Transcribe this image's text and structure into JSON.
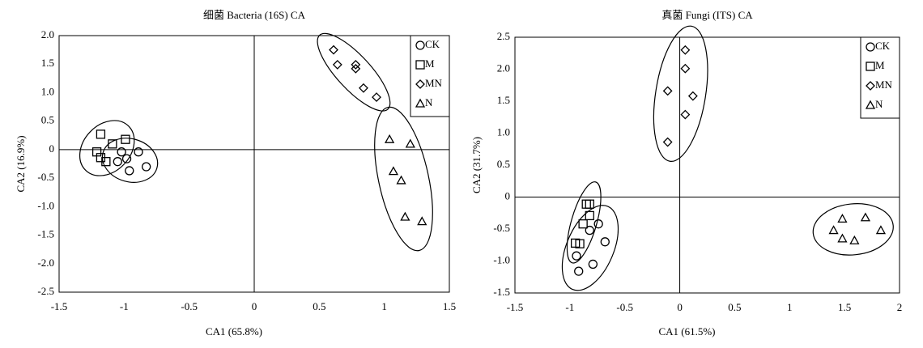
{
  "chart_data": [
    {
      "type": "scatter",
      "title": "细菌 Bacteria (16S) CA",
      "x_label": "CA1 (65.8%)",
      "y_label": "CA2 (16.9%)",
      "xlim": [
        -1.5,
        1.5
      ],
      "ylim": [
        -2.5,
        2.0
      ],
      "xticks": [
        -1.5,
        -1,
        -0.5,
        0,
        0.5,
        1,
        1.5
      ],
      "yticks": [
        {
          "value": 2.0,
          "label": "2.0"
        },
        1.5,
        {
          "value": 1.0,
          "label": "1.0"
        },
        0.5,
        0,
        -0.5,
        {
          "value": -1.0,
          "label": "-1.0"
        },
        -1.5,
        {
          "value": -2.0,
          "label": "-2.0"
        },
        -2.5
      ],
      "grid": false,
      "legend": "upper right",
      "series": [
        {
          "name": "CK",
          "marker": "circle",
          "color": "#000000",
          "x": [
            -1.02,
            -0.89,
            -0.98,
            -1.05,
            -0.83,
            -0.96
          ],
          "values": [
            -0.04,
            -0.04,
            -0.16,
            -0.21,
            -0.3,
            -0.37
          ]
        },
        {
          "name": "M",
          "marker": "square",
          "color": "#000000",
          "x": [
            -1.18,
            -0.99,
            -1.09,
            -1.21,
            -1.18,
            -1.14
          ],
          "values": [
            0.27,
            0.18,
            0.1,
            -0.04,
            -0.14,
            -0.21
          ]
        },
        {
          "name": "MN",
          "marker": "diamond",
          "color": "#000000",
          "x": [
            0.61,
            0.64,
            0.78,
            0.78,
            0.84,
            0.94
          ],
          "values": [
            1.75,
            1.49,
            1.49,
            1.42,
            1.08,
            0.92
          ]
        },
        {
          "name": "N",
          "marker": "triangle",
          "color": "#000000",
          "x": [
            1.04,
            1.2,
            1.07,
            1.13,
            1.16,
            1.29
          ],
          "values": [
            0.18,
            0.1,
            -0.38,
            -0.54,
            -1.18,
            -1.26
          ]
        }
      ]
    },
    {
      "type": "scatter",
      "title": "真菌 Fungi (ITS) CA",
      "x_label": "CA1 (61.5%)",
      "y_label": "CA2 (31.7%)",
      "xlim": [
        -1.5,
        2
      ],
      "ylim": [
        -1.5,
        2.5
      ],
      "xticks": [
        -1.5,
        -1,
        -0.5,
        0,
        0.5,
        1,
        1.5,
        2
      ],
      "yticks": [
        2.5,
        {
          "value": 2.0,
          "label": "2.0"
        },
        1.5,
        {
          "value": 1.0,
          "label": "1.0"
        },
        0.5,
        0,
        -0.5,
        {
          "value": -1.0,
          "label": "-1.0"
        },
        -1.5
      ],
      "grid": false,
      "legend": "upper right",
      "series": [
        {
          "name": "CK",
          "marker": "circle",
          "color": "#000000",
          "x": [
            -0.74,
            -0.68,
            -0.82,
            -0.79,
            -0.94,
            -0.92
          ],
          "values": [
            -0.42,
            -0.7,
            -0.52,
            -1.05,
            -0.92,
            -1.16
          ]
        },
        {
          "name": "M",
          "marker": "square",
          "color": "#000000",
          "x": [
            -0.85,
            -0.82,
            -0.88,
            -0.82,
            -0.95,
            -0.91
          ],
          "values": [
            -0.11,
            -0.11,
            -0.42,
            -0.29,
            -0.72,
            -0.73
          ]
        },
        {
          "name": "MN",
          "marker": "diamond",
          "color": "#000000",
          "x": [
            0.05,
            0.05,
            -0.11,
            0.12,
            0.05,
            -0.11
          ],
          "values": [
            2.3,
            2.01,
            1.66,
            1.58,
            1.29,
            0.86
          ]
        },
        {
          "name": "N",
          "marker": "triangle",
          "color": "#000000",
          "x": [
            1.69,
            1.48,
            1.4,
            1.48,
            1.59,
            1.83
          ],
          "values": [
            -0.32,
            -0.34,
            -0.52,
            -0.65,
            -0.68,
            -0.52
          ]
        }
      ]
    }
  ]
}
